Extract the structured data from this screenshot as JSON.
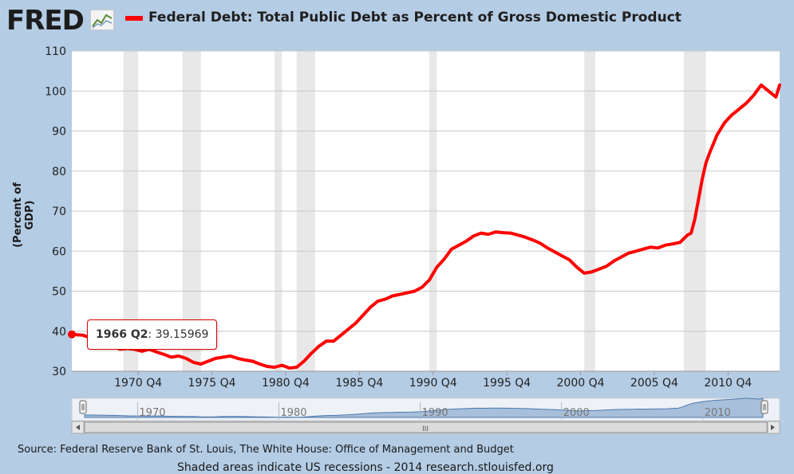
{
  "logo": {
    "text": "FRED",
    "icon": "line-chart-icon"
  },
  "chart_data": {
    "type": "line",
    "title": "Federal Debt: Total Public Debt as Percent of Gross Domestic Product",
    "ylabel": "(Percent of GDP)",
    "xlabel": "",
    "ylim": [
      30,
      110
    ],
    "yticks": [
      30,
      40,
      50,
      60,
      70,
      80,
      90,
      100,
      110
    ],
    "xlim": [
      1966.25,
      2014.25
    ],
    "xtick_values": [
      1970.75,
      1975.75,
      1980.75,
      1985.75,
      1990.75,
      1995.75,
      2000.75,
      2005.75,
      2010.75
    ],
    "xtick_labels": [
      "1970 Q4",
      "1975 Q4",
      "1980 Q4",
      "1985 Q4",
      "1990 Q4",
      "1995 Q4",
      "2000 Q4",
      "2005 Q4",
      "2010 Q4"
    ],
    "recessions": [
      [
        1969.75,
        1970.75
      ],
      [
        1973.75,
        1975.0
      ],
      [
        1980.0,
        1980.5
      ],
      [
        1981.5,
        1982.75
      ],
      [
        1990.5,
        1991.0
      ],
      [
        2001.0,
        2001.75
      ],
      [
        2007.75,
        2009.25
      ]
    ],
    "series": [
      {
        "name": "Federal Debt: Total Public Debt as Percent of Gross Domestic Product",
        "color": "#ff0000",
        "x": [
          1966.25,
          1967.0,
          1968.0,
          1968.75,
          1969.5,
          1970.0,
          1970.5,
          1971.0,
          1971.5,
          1972.0,
          1972.5,
          1973.0,
          1973.5,
          1974.0,
          1974.5,
          1975.0,
          1975.5,
          1976.0,
          1976.5,
          1977.0,
          1977.5,
          1978.0,
          1978.5,
          1979.0,
          1979.5,
          1980.0,
          1980.5,
          1981.0,
          1981.5,
          1982.0,
          1982.5,
          1983.0,
          1983.5,
          1984.0,
          1984.5,
          1985.0,
          1985.5,
          1986.0,
          1986.5,
          1987.0,
          1987.5,
          1988.0,
          1988.5,
          1989.0,
          1989.5,
          1990.0,
          1990.5,
          1991.0,
          1991.5,
          1992.0,
          1992.5,
          1993.0,
          1993.5,
          1994.0,
          1994.5,
          1995.0,
          1995.5,
          1996.0,
          1996.5,
          1997.0,
          1997.5,
          1998.0,
          1998.5,
          1999.0,
          1999.5,
          2000.0,
          2000.5,
          2001.0,
          2001.5,
          2002.0,
          2002.5,
          2003.0,
          2003.5,
          2004.0,
          2004.5,
          2005.0,
          2005.5,
          2006.0,
          2006.5,
          2007.0,
          2007.5,
          2008.0,
          2008.25,
          2008.5,
          2008.75,
          2009.0,
          2009.25,
          2009.5,
          2010.0,
          2010.5,
          2011.0,
          2011.5,
          2012.0,
          2012.5,
          2013.0,
          2013.5,
          2014.0,
          2014.25
        ],
        "y": [
          39.2,
          39.0,
          37.8,
          37.0,
          35.5,
          35.7,
          35.5,
          35.0,
          35.5,
          34.8,
          34.2,
          33.5,
          33.8,
          33.2,
          32.2,
          31.8,
          32.5,
          33.2,
          33.5,
          33.8,
          33.2,
          32.8,
          32.5,
          31.8,
          31.2,
          31.0,
          31.5,
          30.8,
          31.0,
          32.5,
          34.5,
          36.2,
          37.5,
          37.5,
          39.0,
          40.5,
          42.0,
          44.0,
          46.0,
          47.5,
          48.0,
          48.8,
          49.2,
          49.6,
          50.0,
          51.0,
          52.8,
          56.0,
          58.0,
          60.5,
          61.5,
          62.5,
          63.8,
          64.5,
          64.2,
          64.8,
          64.6,
          64.5,
          64.0,
          63.5,
          62.8,
          62.0,
          60.8,
          59.8,
          58.8,
          57.8,
          56.0,
          54.5,
          54.8,
          55.5,
          56.2,
          57.5,
          58.5,
          59.5,
          60.0,
          60.5,
          61.0,
          60.8,
          61.5,
          61.8,
          62.2,
          64.0,
          64.5,
          68.0,
          73.0,
          78.0,
          82.0,
          84.5,
          89.0,
          92.0,
          94.0,
          95.5,
          97.0,
          99.0,
          101.5,
          100.0,
          98.5,
          101.5
        ]
      }
    ],
    "navigator": {
      "labels": [
        "1970",
        "1980",
        "1990",
        "2000",
        "2010"
      ],
      "label_values": [
        1970,
        1980,
        1990,
        2000,
        2010
      ],
      "range": [
        1966.25,
        2014.25
      ],
      "scroll_grip": "III"
    },
    "tooltip": {
      "period": "1966 Q2",
      "value": "39.15969"
    }
  },
  "source_text": "Source: Federal Reserve Bank of St. Louis, The White House: Office of Management and Budget",
  "footnote_text": "Shaded areas indicate US recessions - 2014 research.stlouisfed.org"
}
